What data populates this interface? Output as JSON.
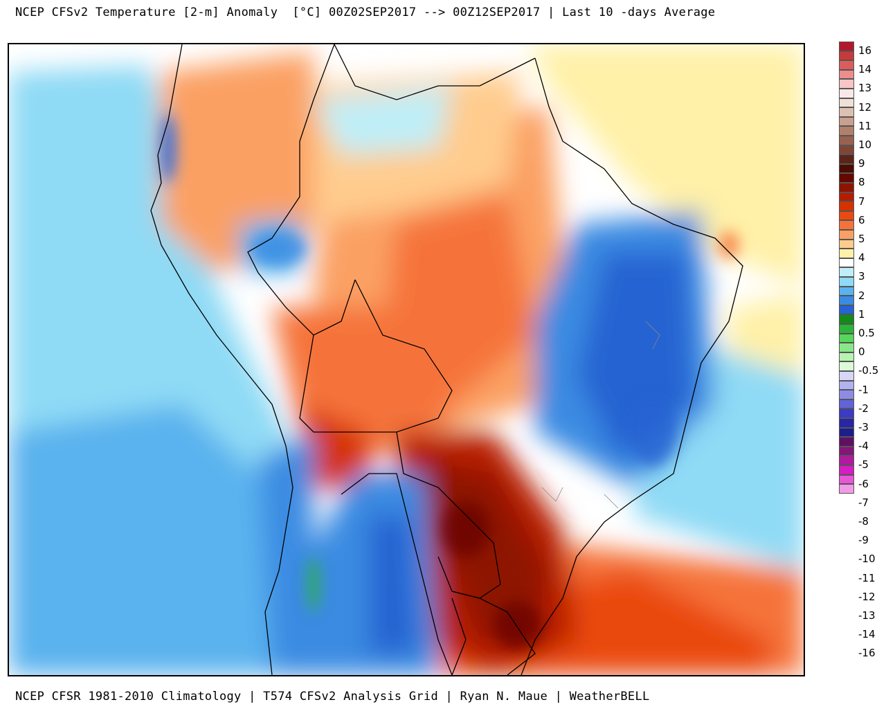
{
  "header": {
    "title": "NCEP CFSv2 Temperature [2-m] Anomaly  [°C] 00Z02SEP2017 --> 00Z12SEP2017 | Last 10 -days Average"
  },
  "footer": {
    "credits": "NCEP CFSR 1981-2010 Climatology | T574 CFSv2 Analysis Grid | Ryan N. Maue | WeatherBELL"
  },
  "colorbar": {
    "labels": [
      "16",
      "14",
      "13",
      "12",
      "11",
      "10",
      "9",
      "8",
      "7",
      "6",
      "5",
      "4",
      "3",
      "2",
      "1",
      "0.5",
      "0",
      "-0.5",
      "-1",
      "-2",
      "-3",
      "-4",
      "-5",
      "-6",
      "-7",
      "-8",
      "-9",
      "-10",
      "-11",
      "-12",
      "-13",
      "-14",
      "-16"
    ],
    "colors": [
      "#b2182b",
      "#c83a3a",
      "#da5d5d",
      "#ec8e8e",
      "#f7c5c5",
      "#f8e8e8",
      "#efe0d8",
      "#dcc0b0",
      "#c9a08e",
      "#b0806c",
      "#97624f",
      "#7f4637",
      "#5c2418",
      "#4a0d05",
      "#650900",
      "#8e1400",
      "#b71c00",
      "#d63200",
      "#ea4a10",
      "#f5733a",
      "#fba064",
      "#ffcc8e",
      "#fff1a8",
      "#ffffff",
      "#bfeef7",
      "#8fdaf5",
      "#5ab2ee",
      "#3a8be2",
      "#2563d2",
      "#138b1b",
      "#2cb33a",
      "#56d65b",
      "#89e789",
      "#b7f4b0",
      "#dcfad8",
      "#d6d6f7",
      "#b2b2f0",
      "#8c8ce6",
      "#6363d8",
      "#3b3bc4",
      "#2626a6",
      "#1e1e8a",
      "#5e1163",
      "#86157a",
      "#b11aa0",
      "#d41dc2",
      "#e856d8",
      "#f29ae8"
    ]
  }
}
